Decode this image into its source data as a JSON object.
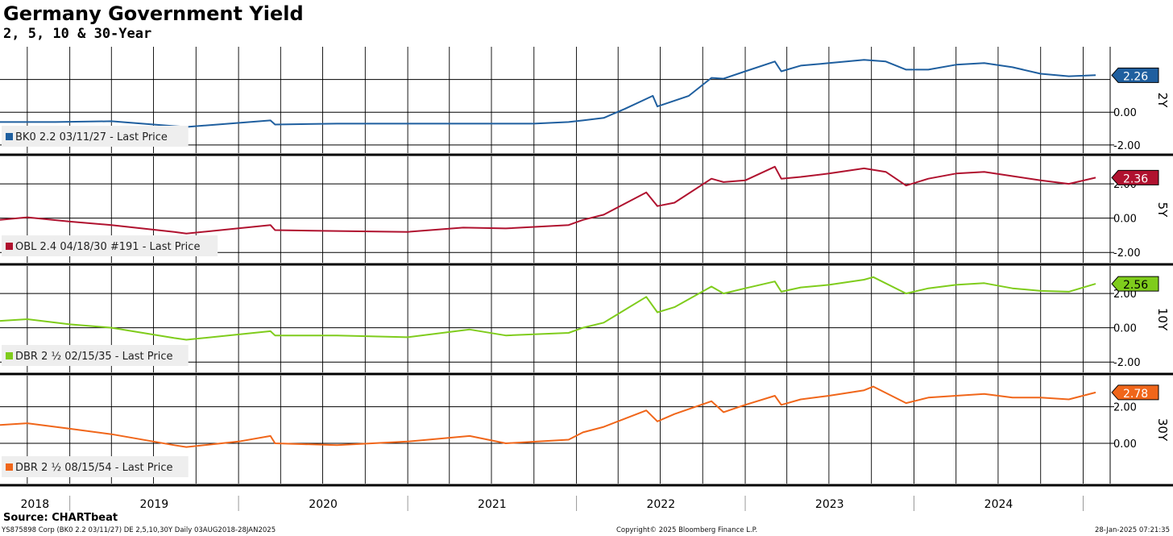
{
  "header": {
    "title": "Germany Government Yield",
    "subtitle": "2, 5, 10 & 30-Year"
  },
  "footer": {
    "source": "Source: CHARTbeat",
    "left": "YS875898 Corp (BK0 2.2 03/11/27) DE 2,5,10,30Y  Daily 03AUG2018-28JAN2025",
    "center": "Copyright© 2025 Bloomberg Finance L.P.",
    "right": "28-Jan-2025 07:21:35"
  },
  "colors": {
    "2Y": "#1f5f9f",
    "5Y": "#b0122f",
    "10Y": "#7fcc1c",
    "30Y": "#f0661a"
  },
  "chart_data": {
    "type": "line",
    "title": "Germany Government Yield",
    "subtitle": "2, 5, 10 & 30-Year",
    "x_range": [
      "2018-08-03",
      "2025-01-28"
    ],
    "x_tick_labels": [
      "2018",
      "2019",
      "2020",
      "2021",
      "2022",
      "2023",
      "2024"
    ],
    "grid": true,
    "panels": [
      {
        "tenor": "2Y",
        "legend": "BK0 2.2 03/11/27 - Last Price",
        "last_value": "2.26",
        "ylim": [
          -2.5,
          4.0
        ],
        "y_ticks": [
          "0.00",
          "-2.00"
        ],
        "y_tick_values": [
          0,
          -2
        ],
        "series": [
          {
            "name": "BK0 2.2 03/11/27 - Last Price",
            "x": [
              "2018-08-03",
              "2018-12-01",
              "2019-04-01",
              "2019-08-15",
              "2019-09-10",
              "2020-03-10",
              "2020-03-20",
              "2020-08-01",
              "2021-01-01",
              "2021-07-01",
              "2021-10-01",
              "2021-12-15",
              "2022-01-15",
              "2022-03-01",
              "2022-04-15",
              "2022-06-15",
              "2022-06-25",
              "2022-09-01",
              "2022-10-20",
              "2022-11-15",
              "2023-01-01",
              "2023-03-06",
              "2023-03-20",
              "2023-05-01",
              "2023-07-01",
              "2023-09-15",
              "2023-11-01",
              "2023-12-15",
              "2024-02-01",
              "2024-04-01",
              "2024-06-01",
              "2024-08-01",
              "2024-10-01",
              "2024-12-01",
              "2025-01-28"
            ],
            "values": [
              -0.6,
              -0.6,
              -0.55,
              -0.85,
              -0.9,
              -0.5,
              -0.75,
              -0.7,
              -0.7,
              -0.7,
              -0.7,
              -0.6,
              -0.5,
              -0.35,
              0.2,
              1.0,
              0.35,
              1.0,
              2.1,
              2.05,
              2.5,
              3.1,
              2.5,
              2.85,
              3.0,
              3.2,
              3.1,
              2.6,
              2.6,
              2.9,
              3.0,
              2.75,
              2.35,
              2.2,
              2.26
            ]
          }
        ]
      },
      {
        "tenor": "5Y",
        "legend": "OBL 2.4 04/18/30 #191 - Last Price",
        "last_value": "2.36",
        "ylim": [
          -2.6,
          3.6
        ],
        "y_ticks": [
          "2.00",
          "0.00",
          "-2.00"
        ],
        "y_tick_values": [
          2,
          0,
          -2
        ],
        "series": [
          {
            "name": "OBL 2.4 04/18/30 #191 - Last Price",
            "x": [
              "2018-08-03",
              "2018-10-01",
              "2019-01-01",
              "2019-04-01",
              "2019-08-15",
              "2019-09-10",
              "2020-03-10",
              "2020-03-20",
              "2020-08-01",
              "2021-01-01",
              "2021-05-01",
              "2021-08-01",
              "2021-12-15",
              "2022-01-15",
              "2022-03-01",
              "2022-06-01",
              "2022-06-25",
              "2022-08-01",
              "2022-10-20",
              "2022-11-15",
              "2023-01-01",
              "2023-03-06",
              "2023-03-20",
              "2023-05-01",
              "2023-07-01",
              "2023-09-15",
              "2023-11-01",
              "2023-12-15",
              "2024-02-01",
              "2024-04-01",
              "2024-06-01",
              "2024-08-01",
              "2024-10-01",
              "2024-12-01",
              "2025-01-28"
            ],
            "values": [
              -0.1,
              0.05,
              -0.2,
              -0.4,
              -0.8,
              -0.9,
              -0.4,
              -0.7,
              -0.75,
              -0.8,
              -0.55,
              -0.6,
              -0.4,
              -0.1,
              0.2,
              1.5,
              0.7,
              0.9,
              2.3,
              2.1,
              2.2,
              3.0,
              2.3,
              2.4,
              2.6,
              2.9,
              2.7,
              1.9,
              2.3,
              2.6,
              2.7,
              2.45,
              2.2,
              2.0,
              2.36
            ]
          }
        ]
      },
      {
        "tenor": "10Y",
        "legend": "DBR 2 ½ 02/15/35 - Last Price",
        "last_value": "2.56",
        "ylim": [
          -2.6,
          3.6
        ],
        "y_ticks": [
          "2.00",
          "0.00",
          "-2.00"
        ],
        "y_tick_values": [
          2,
          0,
          -2
        ],
        "series": [
          {
            "name": "DBR 2 ½ 02/15/35 - Last Price",
            "x": [
              "2018-08-03",
              "2018-10-01",
              "2019-01-01",
              "2019-04-01",
              "2019-08-15",
              "2019-09-10",
              "2020-03-10",
              "2020-03-20",
              "2020-08-01",
              "2021-01-01",
              "2021-05-15",
              "2021-08-01",
              "2021-12-15",
              "2022-01-15",
              "2022-03-01",
              "2022-06-01",
              "2022-06-25",
              "2022-08-01",
              "2022-10-20",
              "2022-11-15",
              "2023-01-01",
              "2023-03-06",
              "2023-03-20",
              "2023-05-01",
              "2023-07-01",
              "2023-09-15",
              "2023-10-05",
              "2023-12-15",
              "2024-02-01",
              "2024-04-01",
              "2024-06-01",
              "2024-08-01",
              "2024-10-01",
              "2024-12-01",
              "2025-01-28"
            ],
            "values": [
              0.4,
              0.5,
              0.2,
              0.0,
              -0.6,
              -0.7,
              -0.2,
              -0.45,
              -0.45,
              -0.55,
              -0.1,
              -0.45,
              -0.3,
              0.0,
              0.3,
              1.8,
              0.9,
              1.2,
              2.4,
              2.0,
              2.3,
              2.7,
              2.1,
              2.35,
              2.5,
              2.8,
              2.95,
              2.0,
              2.3,
              2.5,
              2.6,
              2.3,
              2.15,
              2.1,
              2.56
            ]
          }
        ]
      },
      {
        "tenor": "30Y",
        "legend": "DBR 2 ½ 08/15/54 - Last Price",
        "last_value": "2.78",
        "ylim": [
          -2.2,
          3.7
        ],
        "y_ticks": [
          "2.00",
          "0.00"
        ],
        "y_tick_values": [
          2,
          0
        ],
        "series": [
          {
            "name": "DBR 2 ½ 08/15/54 - Last Price",
            "x": [
              "2018-08-03",
              "2018-10-01",
              "2019-01-01",
              "2019-04-01",
              "2019-08-15",
              "2019-09-10",
              "2020-01-01",
              "2020-03-10",
              "2020-03-20",
              "2020-08-01",
              "2021-01-01",
              "2021-05-15",
              "2021-08-01",
              "2021-12-15",
              "2022-01-15",
              "2022-03-01",
              "2022-06-01",
              "2022-06-25",
              "2022-08-01",
              "2022-10-20",
              "2022-11-15",
              "2023-01-01",
              "2023-03-06",
              "2023-03-20",
              "2023-05-01",
              "2023-07-01",
              "2023-09-15",
              "2023-10-05",
              "2023-12-15",
              "2024-02-01",
              "2024-04-01",
              "2024-06-01",
              "2024-08-01",
              "2024-10-01",
              "2024-12-01",
              "2025-01-28"
            ],
            "values": [
              1.0,
              1.1,
              0.8,
              0.5,
              -0.1,
              -0.2,
              0.1,
              0.4,
              0.0,
              -0.1,
              0.1,
              0.4,
              0.0,
              0.2,
              0.6,
              0.9,
              1.8,
              1.2,
              1.6,
              2.3,
              1.7,
              2.1,
              2.6,
              2.1,
              2.4,
              2.6,
              2.9,
              3.1,
              2.2,
              2.5,
              2.6,
              2.7,
              2.5,
              2.5,
              2.4,
              2.78
            ]
          }
        ]
      }
    ]
  }
}
